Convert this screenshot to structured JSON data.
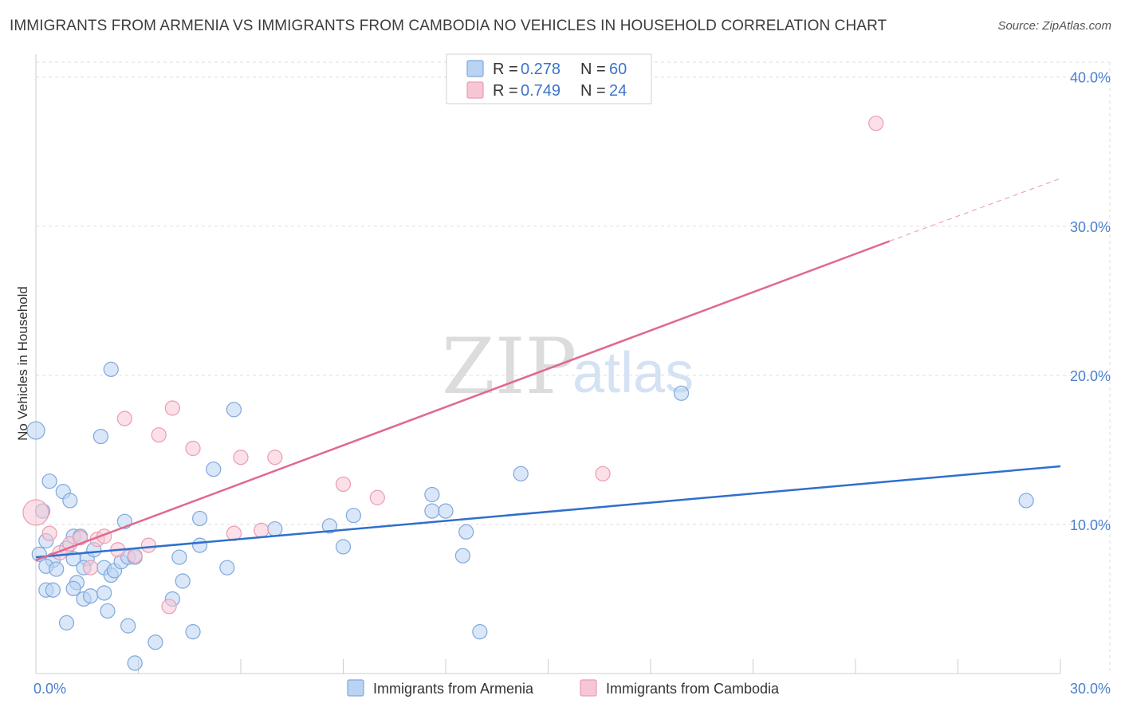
{
  "title": "IMMIGRANTS FROM ARMENIA VS IMMIGRANTS FROM CAMBODIA NO VEHICLES IN HOUSEHOLD CORRELATION CHART",
  "source": "Source: ZipAtlas.com",
  "watermark": {
    "zip": "ZIP",
    "atlas": "atlas"
  },
  "colors": {
    "armenia_fill": "#b9d3f2",
    "armenia_stroke": "#7fa8dc",
    "armenia_line": "#2f6fcc",
    "cambodia_fill": "#f7c6d4",
    "cambodia_stroke": "#eb9bb3",
    "cambodia_line": "#e0688f",
    "grid": "#dddddd",
    "tick_text": "#4a7fcf"
  },
  "legend": {
    "armenia": {
      "r_label": "R =",
      "r_value": "0.278",
      "n_label": "N =",
      "n_value": "60"
    },
    "cambodia": {
      "r_label": "R =",
      "r_value": "0.749",
      "n_label": "N =",
      "n_value": "24"
    }
  },
  "chart_data": {
    "type": "scatter",
    "title": "IMMIGRANTS FROM ARMENIA VS IMMIGRANTS FROM CAMBODIA NO VEHICLES IN HOUSEHOLD CORRELATION CHART",
    "xlabel": "",
    "ylabel": "No Vehicles in Household",
    "xlim": [
      0,
      30
    ],
    "ylim": [
      0,
      41
    ],
    "x_tick_labels": [
      {
        "value": 0,
        "label": "0.0%"
      },
      {
        "value": 30,
        "label": "30.0%"
      }
    ],
    "y_tick_labels": [
      {
        "value": 10,
        "label": "10.0%"
      },
      {
        "value": 20,
        "label": "20.0%"
      },
      {
        "value": 30,
        "label": "30.0%"
      },
      {
        "value": 40,
        "label": "40.0%"
      }
    ],
    "series": [
      {
        "name": "Immigrants from Armenia",
        "points": [
          [
            0.0,
            16.3
          ],
          [
            0.2,
            10.9
          ],
          [
            0.1,
            8.0
          ],
          [
            0.3,
            8.9
          ],
          [
            0.4,
            12.9
          ],
          [
            0.5,
            7.6
          ],
          [
            0.3,
            7.2
          ],
          [
            0.6,
            7.0
          ],
          [
            0.3,
            5.6
          ],
          [
            0.5,
            5.6
          ],
          [
            0.8,
            12.2
          ],
          [
            1.0,
            11.6
          ],
          [
            0.9,
            8.4
          ],
          [
            1.1,
            9.2
          ],
          [
            1.1,
            7.7
          ],
          [
            1.2,
            6.1
          ],
          [
            1.1,
            5.7
          ],
          [
            0.9,
            3.4
          ],
          [
            1.4,
            5.0
          ],
          [
            1.5,
            7.7
          ],
          [
            1.4,
            7.1
          ],
          [
            1.6,
            5.2
          ],
          [
            1.7,
            8.3
          ],
          [
            1.9,
            15.9
          ],
          [
            2.0,
            7.1
          ],
          [
            2.0,
            5.4
          ],
          [
            2.1,
            4.2
          ],
          [
            2.2,
            20.4
          ],
          [
            2.2,
            6.6
          ],
          [
            2.3,
            6.9
          ],
          [
            2.6,
            10.2
          ],
          [
            2.5,
            7.5
          ],
          [
            2.7,
            7.8
          ],
          [
            2.7,
            3.2
          ],
          [
            2.9,
            0.7
          ],
          [
            3.5,
            2.1
          ],
          [
            4.0,
            5.0
          ],
          [
            4.2,
            7.8
          ],
          [
            4.3,
            6.2
          ],
          [
            4.6,
            2.8
          ],
          [
            4.8,
            10.4
          ],
          [
            4.8,
            8.6
          ],
          [
            5.2,
            13.7
          ],
          [
            5.6,
            7.1
          ],
          [
            5.8,
            17.7
          ],
          [
            7.0,
            9.7
          ],
          [
            8.6,
            9.9
          ],
          [
            9.0,
            8.5
          ],
          [
            9.3,
            10.6
          ],
          [
            11.6,
            12.0
          ],
          [
            11.6,
            10.9
          ],
          [
            12.0,
            10.9
          ],
          [
            12.5,
            7.9
          ],
          [
            12.6,
            9.5
          ],
          [
            13.0,
            2.8
          ],
          [
            14.2,
            13.4
          ],
          [
            18.9,
            18.8
          ],
          [
            29.0,
            11.6
          ],
          [
            1.3,
            9.2
          ],
          [
            2.9,
            7.8
          ]
        ],
        "trend": {
          "x": [
            0,
            30
          ],
          "y": [
            7.8,
            13.9
          ]
        }
      },
      {
        "name": "Immigrants from Cambodia",
        "points": [
          [
            0.0,
            10.8
          ],
          [
            0.4,
            9.4
          ],
          [
            0.7,
            8.1
          ],
          [
            1.0,
            8.7
          ],
          [
            1.3,
            9.1
          ],
          [
            1.6,
            7.1
          ],
          [
            1.8,
            9.0
          ],
          [
            2.0,
            9.2
          ],
          [
            2.4,
            8.3
          ],
          [
            2.6,
            17.1
          ],
          [
            2.9,
            7.9
          ],
          [
            3.3,
            8.6
          ],
          [
            3.6,
            16.0
          ],
          [
            3.9,
            4.5
          ],
          [
            4.0,
            17.8
          ],
          [
            4.6,
            15.1
          ],
          [
            5.8,
            9.4
          ],
          [
            6.0,
            14.5
          ],
          [
            6.6,
            9.6
          ],
          [
            7.0,
            14.5
          ],
          [
            9.0,
            12.7
          ],
          [
            10.0,
            11.8
          ],
          [
            16.6,
            13.4
          ],
          [
            24.6,
            36.9
          ]
        ],
        "trend": {
          "x": [
            0,
            25
          ],
          "y": [
            7.6,
            29.0
          ]
        },
        "trend_extension": {
          "x": [
            25,
            30
          ],
          "y": [
            29.0,
            33.2
          ]
        }
      }
    ],
    "legend_position": "top-center"
  },
  "bottom_legend": {
    "armenia_label": "Immigrants from Armenia",
    "cambodia_label": "Immigrants from Cambodia"
  }
}
